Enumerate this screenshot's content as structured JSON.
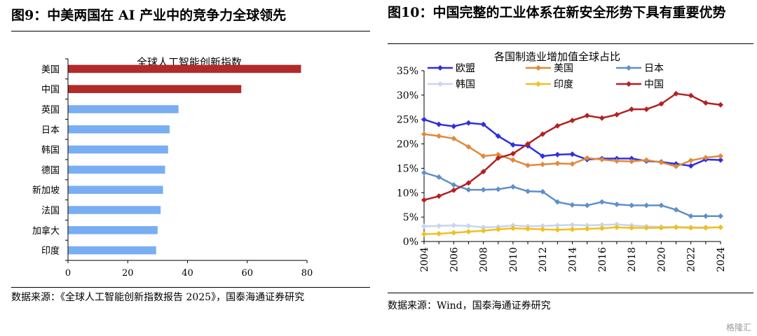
{
  "left": {
    "title": "图9：中美两国在 AI 产业中的竞争力全球领先",
    "source": "数据来源：《全球人工智能创新指数报告 2025》，国泰海通证券研究"
  },
  "right": {
    "title": "图10：中国完整的工业体系在新安全形势下具有重要优势",
    "source": "数据来源：Wind，国泰海通证券研究"
  },
  "watermark": "格隆汇",
  "colors": {
    "bar_highlight": "#b22a2a",
    "bar_normal": "#7aaef2",
    "europe": "#2f2fe0",
    "usa": "#e08a3c",
    "japan": "#5f90c8",
    "korea": "#c8d4f0",
    "india": "#f0c020",
    "china": "#b22222"
  },
  "chart_data": [
    {
      "type": "bar",
      "orientation": "horizontal",
      "title": "全球人工智能创新指数",
      "categories": [
        "美国",
        "中国",
        "英国",
        "日本",
        "韩国",
        "德国",
        "新加坡",
        "法国",
        "加拿大",
        "印度"
      ],
      "values": [
        78,
        58,
        37,
        34,
        33.5,
        32.5,
        31.8,
        31,
        30,
        29.5
      ],
      "highlight": [
        true,
        true,
        false,
        false,
        false,
        false,
        false,
        false,
        false,
        false
      ],
      "xlim": [
        0,
        80
      ],
      "xticks": [
        "0",
        "20",
        "40",
        "60",
        "80"
      ],
      "xlabel": "",
      "ylabel": ""
    },
    {
      "type": "line",
      "title": "各国制造业增加值全球占比",
      "x": [
        "2004",
        "2005",
        "2006",
        "2007",
        "2008",
        "2009",
        "2010",
        "2011",
        "2012",
        "2013",
        "2014",
        "2015",
        "2016",
        "2017",
        "2018",
        "2019",
        "2020",
        "2021",
        "2022",
        "2023",
        "2024"
      ],
      "xticks": [
        "2004",
        "2006",
        "2008",
        "2010",
        "2012",
        "2014",
        "2016",
        "2018",
        "2020",
        "2022",
        "2024"
      ],
      "ylim": [
        0,
        35
      ],
      "yticks": [
        "0%",
        "5%",
        "10%",
        "15%",
        "20%",
        "25%",
        "30%",
        "35%"
      ],
      "legend_position": "top",
      "series": [
        {
          "name": "欧盟",
          "color_key": "europe",
          "values": [
            25,
            24,
            23.6,
            24.3,
            24,
            21.6,
            19.8,
            19.6,
            17.5,
            17.8,
            17.9,
            16.8,
            17,
            17,
            17,
            16.5,
            16.3,
            15.9,
            15.5,
            16.8,
            16.7
          ]
        },
        {
          "name": "美国",
          "color_key": "usa",
          "values": [
            22,
            21.6,
            21.1,
            19.4,
            17.5,
            17.8,
            16.7,
            15.6,
            15.8,
            16,
            15.9,
            17.1,
            16.8,
            16.5,
            16.4,
            16.7,
            16.2,
            15.4,
            16.6,
            17.2,
            17.5
          ]
        },
        {
          "name": "日本",
          "color_key": "japan",
          "values": [
            14.1,
            13.2,
            11.6,
            10.6,
            10.6,
            10.7,
            11.2,
            10.3,
            10.2,
            8.1,
            7.5,
            7.4,
            8.1,
            7.6,
            7.4,
            7.4,
            7.4,
            6.5,
            5.2,
            5.2,
            5.2
          ]
        },
        {
          "name": "韩国",
          "color_key": "korea",
          "values": [
            3.1,
            3.2,
            3.3,
            3.2,
            2.9,
            3,
            3.3,
            3.1,
            3.2,
            3.3,
            3.4,
            3.3,
            3.4,
            3.5,
            3.3,
            3.1,
            3,
            3,
            2.9,
            2.9,
            2.9
          ]
        },
        {
          "name": "印度",
          "color_key": "india",
          "values": [
            1.5,
            1.6,
            1.8,
            2,
            2.2,
            2.5,
            2.7,
            2.6,
            2.5,
            2.4,
            2.5,
            2.6,
            2.7,
            2.9,
            2.8,
            2.8,
            2.8,
            2.9,
            2.8,
            2.8,
            2.9
          ]
        },
        {
          "name": "中国",
          "color_key": "china",
          "values": [
            8.5,
            9.3,
            10.5,
            12,
            14.3,
            17.1,
            18,
            20,
            22,
            23.7,
            24.8,
            25.8,
            25.3,
            26,
            27.1,
            27.1,
            28.2,
            30.3,
            29.9,
            28.4,
            28
          ]
        }
      ]
    }
  ]
}
